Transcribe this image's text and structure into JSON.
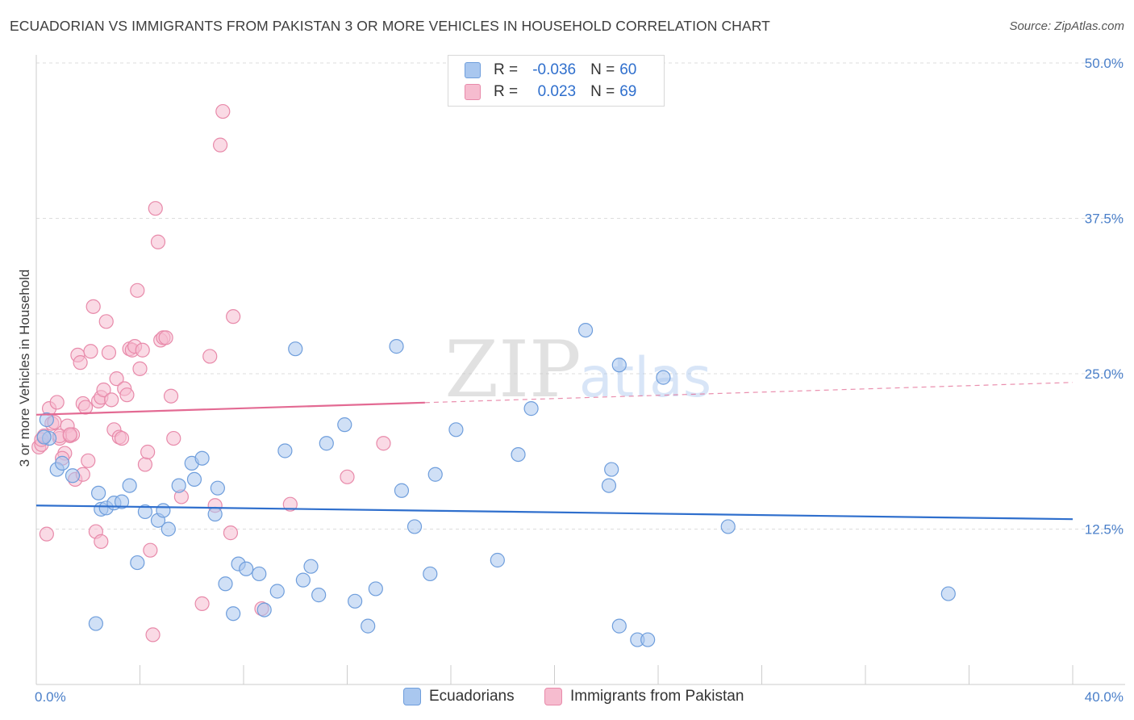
{
  "title": "ECUADORIAN VS IMMIGRANTS FROM PAKISTAN 3 OR MORE VEHICLES IN HOUSEHOLD CORRELATION CHART",
  "source": "Source: ZipAtlas.com",
  "watermark": {
    "zip": "ZIP",
    "atlas": "atlas"
  },
  "legend": {
    "rows": [
      {
        "r_label": "R =",
        "r_value": "-0.036",
        "n_label": "N =",
        "n_value": "60"
      },
      {
        "r_label": "R =",
        "r_value": "0.023",
        "n_label": "N =",
        "n_value": "69"
      }
    ]
  },
  "bottom_legend": {
    "items": [
      {
        "label": "Ecuadorians"
      },
      {
        "label": "Immigrants from Pakistan"
      }
    ]
  },
  "colors": {
    "blue_fill": "#a9c7ef",
    "blue_stroke": "#6f9edc",
    "blue_line": "#2f6fcd",
    "pink_fill": "#f6bccf",
    "pink_stroke": "#e88aaa",
    "pink_line": "#e36a93",
    "tick_text": "#4a7fc9",
    "grid": "#dddddd"
  },
  "chart_data": {
    "type": "scatter",
    "title": "ECUADORIAN VS IMMIGRANTS FROM PAKISTAN 3 OR MORE VEHICLES IN HOUSEHOLD CORRELATION CHART",
    "xlabel": "",
    "ylabel": "3 or more Vehicles in Household",
    "xlim": [
      0,
      40
    ],
    "ylim": [
      0,
      50
    ],
    "x_tick_labels": [
      "0.0%",
      "40.0%"
    ],
    "y_ticks": [
      12.5,
      25.0,
      37.5,
      50.0
    ],
    "y_tick_labels": [
      "12.5%",
      "25.0%",
      "37.5%",
      "50.0%"
    ],
    "grid": true,
    "series": [
      {
        "name": "Ecuadorians",
        "r": -0.036,
        "n": 60,
        "trend": {
          "x0": 0,
          "y0": 14.4,
          "x1": 40,
          "y1": 13.3,
          "solid_until": 40
        },
        "points": [
          [
            0.4,
            21.3
          ],
          [
            0.5,
            19.8
          ],
          [
            0.8,
            17.3
          ],
          [
            1.0,
            17.8
          ],
          [
            1.4,
            16.8
          ],
          [
            2.4,
            15.4
          ],
          [
            2.5,
            14.1
          ],
          [
            2.7,
            14.2
          ],
          [
            3.0,
            14.6
          ],
          [
            3.3,
            14.7
          ],
          [
            3.6,
            16.0
          ],
          [
            3.9,
            9.8
          ],
          [
            4.2,
            13.9
          ],
          [
            4.7,
            13.2
          ],
          [
            4.9,
            14.0
          ],
          [
            5.1,
            12.5
          ],
          [
            5.5,
            16.0
          ],
          [
            6.0,
            17.8
          ],
          [
            6.1,
            16.5
          ],
          [
            6.4,
            18.2
          ],
          [
            6.9,
            13.7
          ],
          [
            7.0,
            15.8
          ],
          [
            7.3,
            8.1
          ],
          [
            7.6,
            5.7
          ],
          [
            7.8,
            9.7
          ],
          [
            8.1,
            9.3
          ],
          [
            8.6,
            8.9
          ],
          [
            8.8,
            6.0
          ],
          [
            9.3,
            7.5
          ],
          [
            9.6,
            18.8
          ],
          [
            10.0,
            27.0
          ],
          [
            10.3,
            8.4
          ],
          [
            10.6,
            9.5
          ],
          [
            10.9,
            7.2
          ],
          [
            11.2,
            19.4
          ],
          [
            11.9,
            20.9
          ],
          [
            12.3,
            6.7
          ],
          [
            12.8,
            4.7
          ],
          [
            13.1,
            7.7
          ],
          [
            13.9,
            27.2
          ],
          [
            14.1,
            15.6
          ],
          [
            14.6,
            12.7
          ],
          [
            15.2,
            8.9
          ],
          [
            15.4,
            16.9
          ],
          [
            16.2,
            20.5
          ],
          [
            17.8,
            10.0
          ],
          [
            18.6,
            18.5
          ],
          [
            19.1,
            22.2
          ],
          [
            21.2,
            28.5
          ],
          [
            22.1,
            16.0
          ],
          [
            22.2,
            17.3
          ],
          [
            22.5,
            25.7
          ],
          [
            22.5,
            4.7
          ],
          [
            23.2,
            3.6
          ],
          [
            23.6,
            3.6
          ],
          [
            24.2,
            24.7
          ],
          [
            26.7,
            12.7
          ],
          [
            35.2,
            7.3
          ],
          [
            2.3,
            4.9
          ],
          [
            0.3,
            19.9
          ]
        ]
      },
      {
        "name": "Immigrants from Pakistan",
        "r": 0.023,
        "n": 69,
        "trend": {
          "x0": 0,
          "y0": 21.7,
          "x1": 40,
          "y1": 24.3,
          "solid_until": 15
        },
        "points": [
          [
            0.1,
            19.1
          ],
          [
            0.2,
            19.3
          ],
          [
            0.2,
            19.7
          ],
          [
            0.4,
            12.1
          ],
          [
            0.5,
            22.2
          ],
          [
            0.6,
            21.0
          ],
          [
            0.7,
            21.1
          ],
          [
            0.8,
            22.7
          ],
          [
            0.9,
            19.8
          ],
          [
            1.1,
            18.6
          ],
          [
            1.2,
            20.8
          ],
          [
            1.3,
            20.0
          ],
          [
            1.4,
            20.1
          ],
          [
            1.5,
            16.5
          ],
          [
            1.6,
            26.5
          ],
          [
            1.7,
            25.9
          ],
          [
            1.8,
            22.6
          ],
          [
            1.8,
            16.9
          ],
          [
            1.9,
            22.3
          ],
          [
            2.0,
            18.0
          ],
          [
            2.1,
            26.8
          ],
          [
            2.2,
            30.4
          ],
          [
            2.3,
            12.3
          ],
          [
            2.4,
            22.8
          ],
          [
            2.5,
            23.1
          ],
          [
            2.5,
            11.5
          ],
          [
            2.6,
            23.7
          ],
          [
            2.7,
            29.2
          ],
          [
            2.8,
            26.7
          ],
          [
            2.9,
            22.9
          ],
          [
            3.0,
            20.5
          ],
          [
            3.1,
            24.6
          ],
          [
            3.2,
            19.9
          ],
          [
            3.3,
            19.8
          ],
          [
            3.4,
            23.8
          ],
          [
            3.5,
            23.3
          ],
          [
            3.6,
            27.0
          ],
          [
            3.7,
            26.9
          ],
          [
            3.8,
            27.2
          ],
          [
            3.9,
            31.7
          ],
          [
            4.0,
            25.4
          ],
          [
            4.1,
            26.9
          ],
          [
            4.2,
            17.7
          ],
          [
            4.3,
            18.7
          ],
          [
            4.4,
            10.8
          ],
          [
            4.5,
            4.0
          ],
          [
            4.6,
            38.3
          ],
          [
            4.7,
            35.6
          ],
          [
            4.8,
            27.7
          ],
          [
            4.9,
            27.9
          ],
          [
            5.0,
            27.9
          ],
          [
            5.2,
            23.2
          ],
          [
            5.3,
            19.8
          ],
          [
            5.6,
            15.1
          ],
          [
            6.4,
            6.5
          ],
          [
            6.7,
            26.4
          ],
          [
            6.9,
            14.4
          ],
          [
            7.1,
            43.4
          ],
          [
            7.2,
            46.1
          ],
          [
            7.5,
            12.2
          ],
          [
            7.6,
            29.6
          ],
          [
            8.7,
            6.1
          ],
          [
            9.8,
            14.5
          ],
          [
            12.0,
            16.7
          ],
          [
            13.4,
            19.4
          ],
          [
            0.3,
            20.0
          ],
          [
            1.0,
            18.2
          ],
          [
            0.9,
            20.0
          ],
          [
            1.3,
            20.1
          ]
        ]
      }
    ]
  }
}
